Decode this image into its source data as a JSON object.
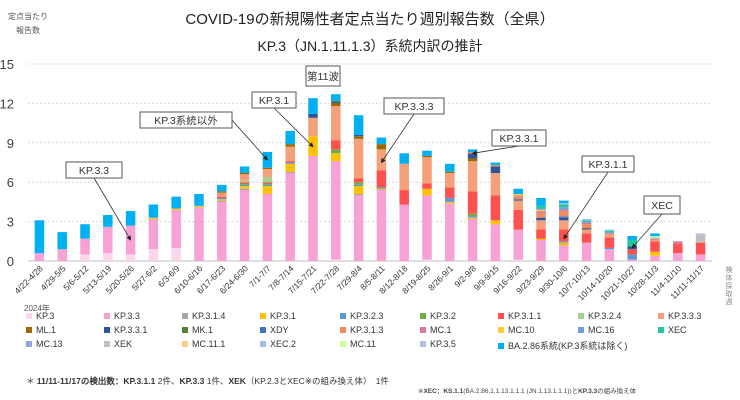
{
  "chart_data": {
    "type": "bar",
    "stacked": true,
    "title": "COVID-19の新規陽性者定点当たり週別報告数（全県）",
    "subtitle": "KP.3（JN.1.11.1.3）系統内訳の推計",
    "ylabel": "定点当たり報告数",
    "xlabel": "検体採取週",
    "year_label": "2024年",
    "ylim": [
      0,
      15
    ],
    "yticks": [
      0,
      3,
      6,
      9,
      12,
      15
    ],
    "grid": true,
    "legend_position": "bottom",
    "categories": [
      "4/22-4/28",
      "4/29-5/5",
      "5/6-5/12",
      "5/13-5/19",
      "5/20-5/26",
      "5/27-6/2",
      "6/3-6/9",
      "6/10-6/16",
      "6/17-6/23",
      "6/24-6/30",
      "7/1-7/7",
      "7/8-7/14",
      "7/15-7/21",
      "7/22-7/28",
      "7/29-8/4",
      "8/5-8/11",
      "8/12-8/18",
      "8/19-8/25",
      "8/26-9/1",
      "9/2-9/8",
      "9/9-9/15",
      "9/16-9/22",
      "9/23-9/29",
      "9/30-10/6",
      "10/7-10/13",
      "10/14-10/20",
      "10/21-10/27",
      "10/28-11/3",
      "11/4-11/10",
      "11/11-11/17"
    ],
    "series": [
      {
        "name": "KP.3",
        "color": "#fbd7ec",
        "values": [
          0,
          0,
          0.5,
          0.6,
          0.5,
          0.9,
          1.0,
          0,
          0,
          0,
          0,
          0,
          0,
          0.1,
          0,
          0,
          0,
          0.1,
          0,
          0,
          0,
          0.1,
          0,
          0,
          0,
          0,
          0,
          0,
          0,
          0
        ]
      },
      {
        "name": "KP.3.3",
        "color": "#f7a1d4",
        "values": [
          0.6,
          0.9,
          1.2,
          2.0,
          2.2,
          2.3,
          2.9,
          4.1,
          4.5,
          5.4,
          5.1,
          6.7,
          8.0,
          7.5,
          5.0,
          5.4,
          4.3,
          4.9,
          4.4,
          3.2,
          2.8,
          2.3,
          1.6,
          1.2,
          1.4,
          0.9,
          0.1,
          0.4,
          0.6,
          0.5
        ]
      },
      {
        "name": "KP.3.1.4",
        "color": "#a5a5a5",
        "values": [
          0,
          0,
          0,
          0,
          0,
          0,
          0,
          0,
          0.1,
          0.1,
          0,
          0.1,
          0,
          0,
          0.1,
          0,
          0,
          0,
          0,
          0,
          0,
          0,
          0,
          0,
          0,
          0,
          0,
          0,
          0,
          0
        ]
      },
      {
        "name": "KP.3.1",
        "color": "#ffc000",
        "values": [
          0,
          0,
          0,
          0,
          0,
          0.1,
          0.1,
          0.1,
          0.1,
          0.2,
          0.6,
          0.6,
          1.5,
          0.6,
          0.6,
          0.1,
          0,
          0.5,
          0.1,
          0.1,
          0.3,
          0,
          0.1,
          0.2,
          0,
          0,
          0,
          0.3,
          0,
          0
        ]
      },
      {
        "name": "KP.3.2.3",
        "color": "#5b9bd5",
        "values": [
          0,
          0,
          0,
          0,
          0,
          0,
          0,
          0,
          0.1,
          0.1,
          0.1,
          0.1,
          0,
          0,
          0.1,
          0.1,
          0,
          0,
          0.3,
          0.1,
          0,
          0,
          0,
          0.1,
          0,
          0.1,
          0.4,
          0,
          0,
          0
        ]
      },
      {
        "name": "KP.3.2",
        "color": "#70ad47",
        "values": [
          0,
          0,
          0,
          0,
          0,
          0,
          0,
          0,
          0,
          0.1,
          0.1,
          0,
          0,
          0.3,
          0.2,
          0,
          0,
          0,
          0,
          0.2,
          0,
          0,
          0,
          0,
          0,
          0,
          0,
          0,
          0,
          0
        ]
      },
      {
        "name": "KP.3.1.1",
        "color": "#ff5050",
        "values": [
          0,
          0,
          0,
          0,
          0,
          0,
          0,
          0,
          0.1,
          0.1,
          0.1,
          0.1,
          0,
          0.7,
          0.3,
          1.3,
          1.1,
          0.4,
          0.8,
          1.7,
          1.9,
          1.5,
          0.7,
          0.9,
          0.7,
          0.8,
          0.4,
          0.8,
          0.7,
          0.9
        ]
      },
      {
        "name": "KP.3.2.4",
        "color": "#a9d18e",
        "values": [
          0,
          0,
          0,
          0,
          0,
          0,
          0,
          0,
          0,
          0.1,
          0.4,
          0,
          0,
          0,
          0,
          0,
          0,
          0,
          0,
          0,
          0,
          0,
          0,
          0,
          0,
          0,
          0,
          0,
          0,
          0
        ]
      },
      {
        "name": "KP.3.3.3",
        "color": "#f4a07a",
        "values": [
          0,
          0,
          0,
          0,
          0,
          0,
          0,
          0,
          0.3,
          0.5,
          0.6,
          1.1,
          1.4,
          2.6,
          3.0,
          1.6,
          2.0,
          2.0,
          1.1,
          2.3,
          1.7,
          0.7,
          0.7,
          0.7,
          0.3,
          0.2,
          0,
          0.1,
          0,
          0
        ]
      },
      {
        "name": "ML.1",
        "color": "#9c6a00",
        "values": [
          0,
          0,
          0,
          0,
          0,
          0,
          0,
          0,
          0.1,
          0.1,
          0.1,
          0.2,
          0,
          0.2,
          0.2,
          0.4,
          0,
          0.1,
          0.1,
          0.2,
          0,
          0,
          0,
          0,
          0,
          0,
          0,
          0,
          0,
          0
        ]
      },
      {
        "name": "KP.3.3.1",
        "color": "#2f5597",
        "values": [
          0,
          0,
          0,
          0,
          0,
          0,
          0,
          0,
          0,
          0,
          0,
          0,
          0.3,
          0.1,
          0.1,
          0,
          0,
          0,
          0,
          0.4,
          0.5,
          0.1,
          0.2,
          0.2,
          0.1,
          0,
          0.2,
          0,
          0,
          0
        ]
      },
      {
        "name": "MK.1",
        "color": "#548235",
        "values": [
          0,
          0,
          0,
          0,
          0,
          0,
          0,
          0,
          0,
          0,
          0,
          0,
          0,
          0.1,
          0,
          0,
          0,
          0,
          0,
          0,
          0,
          0,
          0,
          0,
          0,
          0,
          0,
          0,
          0,
          0
        ]
      },
      {
        "name": "XDY",
        "color": "#4472c4",
        "values": [
          0,
          0,
          0,
          0,
          0,
          0,
          0,
          0,
          0,
          0,
          0,
          0,
          0,
          0,
          0,
          0,
          0,
          0,
          0,
          0,
          0,
          0,
          0,
          0.1,
          0,
          0,
          0,
          0,
          0,
          0
        ]
      },
      {
        "name": "KP.3.1.3",
        "color": "#f08c5a",
        "values": [
          0,
          0,
          0,
          0,
          0,
          0,
          0,
          0,
          0,
          0,
          0,
          0,
          0,
          0,
          0,
          0,
          0,
          0,
          0,
          0.1,
          0.1,
          0.2,
          0.3,
          0.4,
          0.3,
          0.1,
          0,
          0.1,
          0,
          0
        ]
      },
      {
        "name": "MC.1",
        "color": "#d97b93",
        "values": [
          0,
          0,
          0,
          0,
          0,
          0,
          0,
          0,
          0,
          0,
          0,
          0,
          0,
          0,
          0,
          0,
          0,
          0,
          0,
          0,
          0,
          0.1,
          0.2,
          0.1,
          0.1,
          0,
          0,
          0,
          0.2,
          0
        ]
      },
      {
        "name": "MC.10",
        "color": "#ffcc33",
        "values": [
          0,
          0,
          0,
          0,
          0,
          0,
          0,
          0,
          0,
          0,
          0,
          0,
          0,
          0,
          0,
          0,
          0,
          0,
          0,
          0,
          0,
          0.1,
          0.1,
          0,
          0,
          0,
          0,
          0,
          0,
          0
        ]
      },
      {
        "name": "MC.16",
        "color": "#6fa0d8",
        "values": [
          0,
          0,
          0,
          0,
          0,
          0,
          0,
          0,
          0,
          0,
          0,
          0,
          0,
          0,
          0,
          0,
          0,
          0,
          0,
          0,
          0,
          0,
          0.1,
          0.2,
          0.1,
          0.1,
          0,
          0,
          0,
          0
        ]
      },
      {
        "name": "XEC",
        "color": "#1ec8a0",
        "values": [
          0,
          0,
          0,
          0,
          0,
          0,
          0,
          0,
          0,
          0,
          0,
          0,
          0,
          0,
          0,
          0,
          0,
          0,
          0,
          0,
          0,
          0,
          0.2,
          0.2,
          0.1,
          0.1,
          0.5,
          0,
          0,
          0
        ]
      },
      {
        "name": "MC.13",
        "color": "#8ea9db",
        "values": [
          0,
          0,
          0,
          0,
          0,
          0,
          0,
          0,
          0,
          0,
          0,
          0,
          0,
          0,
          0,
          0,
          0,
          0,
          0,
          0,
          0,
          0,
          0,
          0,
          0,
          0,
          0,
          0,
          0,
          0
        ]
      },
      {
        "name": "XEK",
        "color": "#bfbfbf",
        "values": [
          0,
          0,
          0,
          0,
          0,
          0,
          0,
          0,
          0,
          0,
          0,
          0,
          0,
          0,
          0,
          0,
          0,
          0,
          0,
          0,
          0,
          0,
          0,
          0,
          0,
          0,
          0,
          0,
          0,
          0.6
        ]
      },
      {
        "name": "MC.11.1",
        "color": "#f8cb8c",
        "values": [
          0,
          0,
          0,
          0,
          0,
          0,
          0,
          0,
          0,
          0,
          0,
          0,
          0,
          0,
          0,
          0,
          0,
          0,
          0,
          0,
          0,
          0,
          0,
          0,
          0,
          0,
          0,
          0,
          0,
          0
        ]
      },
      {
        "name": "XEC.2",
        "color": "#9dc3e6",
        "values": [
          0,
          0,
          0,
          0,
          0,
          0,
          0,
          0,
          0,
          0,
          0,
          0,
          0,
          0,
          0,
          0,
          0,
          0,
          0,
          0,
          0,
          0,
          0,
          0,
          0.1,
          0.1,
          0,
          0.1,
          0,
          0
        ]
      },
      {
        "name": "MC.11",
        "color": "#ccff99",
        "values": [
          0,
          0,
          0,
          0,
          0,
          0,
          0,
          0,
          0,
          0,
          0,
          0,
          0,
          0,
          0,
          0,
          0,
          0,
          0,
          0,
          0,
          0,
          0,
          0,
          0,
          0,
          0,
          0.1,
          0,
          0
        ]
      },
      {
        "name": "KP.3.5",
        "color": "#b4c0dc",
        "values": [
          0,
          0,
          0,
          0,
          0,
          0,
          0,
          0,
          0,
          0,
          0,
          0,
          0,
          0,
          0,
          0,
          0,
          0,
          0,
          0,
          0,
          0,
          0,
          0.1,
          0,
          0,
          0,
          0,
          0,
          0.1
        ]
      },
      {
        "name": "BA.2.86系統(KP.3系統は除く)",
        "color": "#00b0f0",
        "values": [
          2.5,
          1.3,
          1.1,
          0.9,
          1.1,
          1.0,
          0.9,
          0.9,
          0.5,
          0.5,
          1.2,
          1.0,
          1.2,
          0.5,
          1.5,
          0.5,
          0.8,
          0.4,
          0.6,
          0.2,
          0.2,
          0.4,
          0.6,
          0.2,
          0,
          0,
          0.3,
          0.2,
          0,
          0
        ]
      }
    ],
    "annotations": [
      {
        "text": "KP.3.3",
        "target_category": "5/20-5/26"
      },
      {
        "text": "KP.3系統以外",
        "target_category": "7/1-7/7"
      },
      {
        "text": "KP.3.1",
        "target_category": "7/15-7/21"
      },
      {
        "text": "第11波",
        "target_category": "7/22-7/28"
      },
      {
        "text": "KP.3.3.3",
        "target_category": "8/5-8/11"
      },
      {
        "text": "KP.3.3.1",
        "target_category": "9/2-9/8"
      },
      {
        "text": "KP.3.1.1",
        "target_category": "9/30-10/6"
      },
      {
        "text": "XEC",
        "target_category": "10/21-10/27"
      }
    ]
  },
  "header": {
    "y_unit_line1": "定点当たり",
    "y_unit_line2": "報告数"
  },
  "footnotes": {
    "note1_prefix": "＊",
    "note1_period": "11/11-11/17",
    "note1_mid": "の検出数：",
    "note1_v1": "KP.3.1.1",
    "note1_c1": " 2件、",
    "note1_v2": "KP.3.3",
    "note1_c2": " 1件、",
    "note1_v3": "XEK",
    "note1_c3": "（KP.2.3とXEC※の組み換え体）　1件",
    "note2_prefix": "※",
    "note2_v1": "XEC：KS.1.1",
    "note2_mid": "(BA.2.86.1.1.13.1.1.1 (JN.1.13.1.1.1))と",
    "note2_v2": "KP.3.3",
    "note2_suffix": "の組み換え体"
  }
}
